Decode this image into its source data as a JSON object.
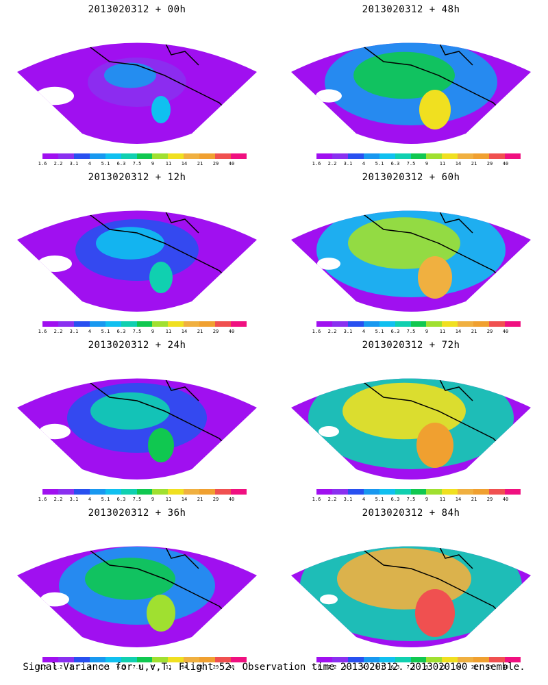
{
  "panels": [
    {
      "title": "2013020312 + 00h",
      "level": 0.1
    },
    {
      "title": "2013020312 + 48h",
      "level": 0.55
    },
    {
      "title": "2013020312 + 12h",
      "level": 0.25
    },
    {
      "title": "2013020312 + 60h",
      "level": 0.65
    },
    {
      "title": "2013020312 + 24h",
      "level": 0.35
    },
    {
      "title": "2013020312 + 72h",
      "level": 0.75
    },
    {
      "title": "2013020312 + 36h",
      "level": 0.45
    },
    {
      "title": "2013020312 + 84h",
      "level": 0.85
    }
  ],
  "colorbar": {
    "labels": [
      "1.6",
      "2.2",
      "3.1",
      "4",
      "5.1",
      "6.3",
      "7.5",
      "9",
      "11",
      "14",
      "21",
      "29",
      "40"
    ],
    "colors": [
      "#a010f0",
      "#8a30f0",
      "#2850f0",
      "#1898f0",
      "#10c0f0",
      "#10d0b0",
      "#10c850",
      "#a0e030",
      "#f0e020",
      "#f0b040",
      "#f0a030",
      "#f05050",
      "#f01080"
    ]
  },
  "caption": "Signal Variance for u,v,T. Flight 52. Observation time 2013020312. 2013020100 ensemble."
}
